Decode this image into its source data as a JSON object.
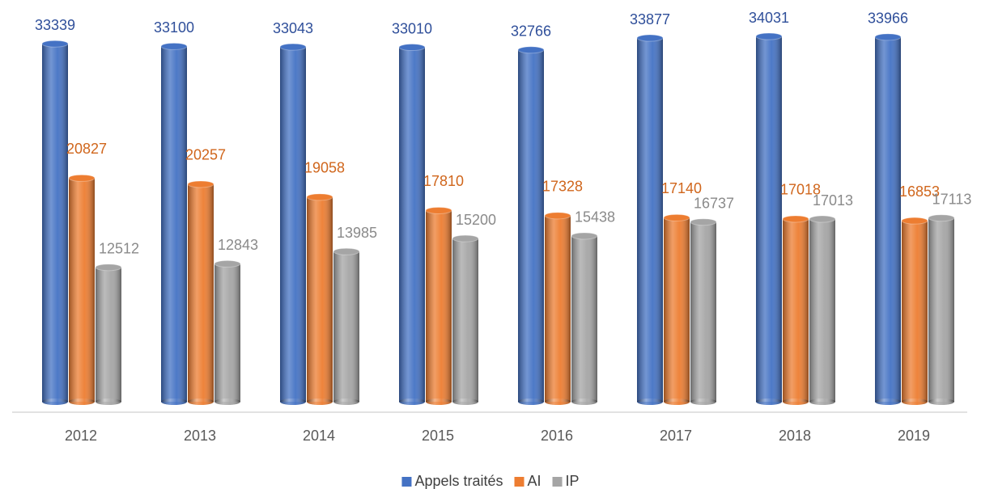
{
  "chart_data": {
    "type": "bar",
    "bar_style": "cylinder",
    "categories": [
      "2012",
      "2013",
      "2014",
      "2015",
      "2016",
      "2017",
      "2018",
      "2019"
    ],
    "series": [
      {
        "name": "Appels traités",
        "color": "#4472c4",
        "label_color": "#2f4f9a",
        "values": [
          33339,
          33100,
          33043,
          33010,
          32766,
          33877,
          34031,
          33966
        ]
      },
      {
        "name": "AI",
        "color": "#ed7d31",
        "label_color": "#d0661c",
        "values": [
          20827,
          20257,
          19058,
          17810,
          17328,
          17140,
          17018,
          16853
        ]
      },
      {
        "name": "IP",
        "color": "#a5a5a5",
        "label_color": "#8a8a8a",
        "values": [
          12512,
          12843,
          13985,
          15200,
          15438,
          16737,
          17013,
          17113
        ]
      }
    ],
    "legend": "bottom",
    "data_labels": true
  }
}
